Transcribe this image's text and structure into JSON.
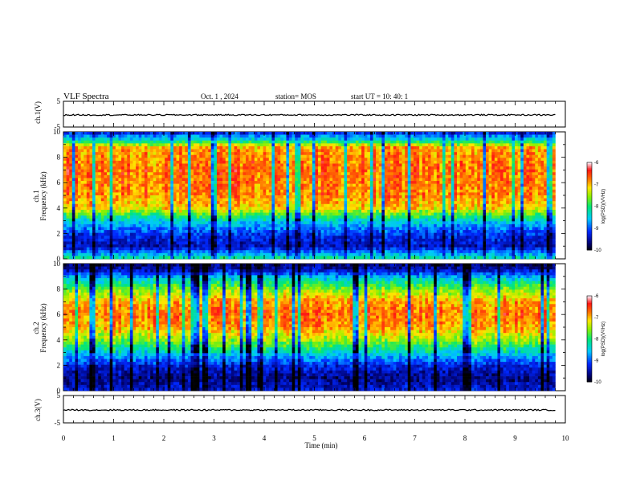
{
  "header": {
    "title": "VLF Spectra",
    "date": "Oct. 1 , 2024",
    "station": "station= MOS",
    "start_ut": "start  UT =   10: 40: 1"
  },
  "chart_data": [
    {
      "type": "line",
      "panel": "ch1-waveform",
      "ylabel": "ch.1(V)",
      "ylim": [
        -5,
        5
      ],
      "yticks": [
        "5",
        "-5"
      ],
      "xlim": [
        0,
        10
      ],
      "series": [
        {
          "values_note": "",
          "level": -0.3
        }
      ],
      "grid": false
    },
    {
      "type": "heatmap",
      "panel": "ch1-spectrogram",
      "ylabel": "ch.1\nFrequency (kHz)",
      "ylim": [
        0,
        10
      ],
      "yticks": [
        "0",
        "2",
        "4",
        "6",
        "8",
        "10"
      ],
      "xlim": [
        0,
        9.8
      ],
      "colorbar": {
        "label": "log(PSD)(V²/Hz)",
        "range": [
          -10,
          -6
        ],
        "ticks": [
          "-6",
          "-7",
          "-8",
          "-9",
          "-10"
        ]
      },
      "band_profile": [
        {
          "f": 0.0,
          "level": -8.0
        },
        {
          "f": 0.4,
          "level": -8.7
        },
        {
          "f": 1.0,
          "level": -9.4
        },
        {
          "f": 2.0,
          "level": -9.1
        },
        {
          "f": 3.0,
          "level": -8.4
        },
        {
          "f": 4.0,
          "level": -7.1
        },
        {
          "f": 5.0,
          "level": -6.8
        },
        {
          "f": 7.0,
          "level": -6.7
        },
        {
          "f": 8.8,
          "level": -6.9
        },
        {
          "f": 9.3,
          "level": -8.2
        },
        {
          "f": 10.0,
          "level": -9.3
        }
      ]
    },
    {
      "type": "heatmap",
      "panel": "ch2-spectrogram",
      "ylabel": "ch.2\nFrequency (kHz)",
      "ylim": [
        0,
        10
      ],
      "yticks": [
        "0",
        "2",
        "4",
        "6",
        "8",
        "10"
      ],
      "xlim": [
        0,
        9.8
      ],
      "colorbar": {
        "label": "log(PSD)(V²/Hz)",
        "range": [
          -10,
          -6
        ],
        "ticks": [
          "-6",
          "-7",
          "-8",
          "-9",
          "-10"
        ]
      },
      "band_profile": [
        {
          "f": 0.0,
          "level": -9.3
        },
        {
          "f": 1.0,
          "level": -9.6
        },
        {
          "f": 2.0,
          "level": -9.2
        },
        {
          "f": 3.0,
          "level": -8.4
        },
        {
          "f": 4.0,
          "level": -7.5
        },
        {
          "f": 5.0,
          "level": -6.9
        },
        {
          "f": 6.0,
          "level": -6.7
        },
        {
          "f": 7.0,
          "level": -6.9
        },
        {
          "f": 8.0,
          "level": -7.6
        },
        {
          "f": 8.8,
          "level": -8.4
        },
        {
          "f": 9.5,
          "level": -9.4
        },
        {
          "f": 10.0,
          "level": -9.7
        }
      ]
    },
    {
      "type": "line",
      "panel": "ch3-waveform",
      "ylabel": "ch.3(V)",
      "ylim": [
        -5,
        5
      ],
      "yticks": [
        "5",
        "-5"
      ],
      "xlim": [
        0,
        10
      ],
      "series": [
        {
          "level": -0.3
        }
      ],
      "xlabel": "Time (min)",
      "xticks": [
        "0",
        "1",
        "2",
        "3",
        "4",
        "5",
        "6",
        "7",
        "8",
        "9",
        "10"
      ],
      "grid": false
    }
  ],
  "colors": {
    "axis": "#000000",
    "background": "#ffffff"
  }
}
